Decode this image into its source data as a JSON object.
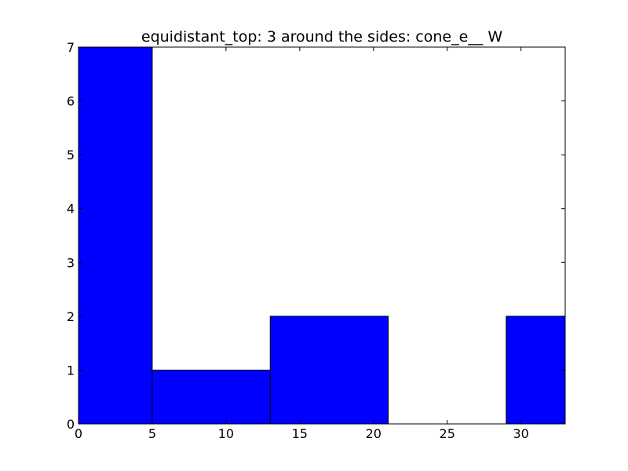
{
  "chart_data": {
    "type": "bar",
    "title": "equidistant_top: 3 around the sides: cone_e__ W",
    "xlabel": "",
    "ylabel": "",
    "bins": [
      {
        "x0": 0,
        "x1": 5,
        "value": 7
      },
      {
        "x0": 5,
        "x1": 13,
        "value": 1
      },
      {
        "x0": 13,
        "x1": 21,
        "value": 2
      },
      {
        "x0": 21,
        "x1": 29,
        "value": 0
      },
      {
        "x0": 29,
        "x1": 33,
        "value": 2
      }
    ],
    "xlim": [
      0,
      33
    ],
    "ylim": [
      0,
      7
    ],
    "xticks": [
      "0",
      "5",
      "10",
      "15",
      "20",
      "25",
      "30"
    ],
    "yticks": [
      "0",
      "1",
      "2",
      "3",
      "4",
      "5",
      "6",
      "7"
    ],
    "grid": false,
    "bar_color": "#0000ff",
    "edge_color": "#000000"
  }
}
